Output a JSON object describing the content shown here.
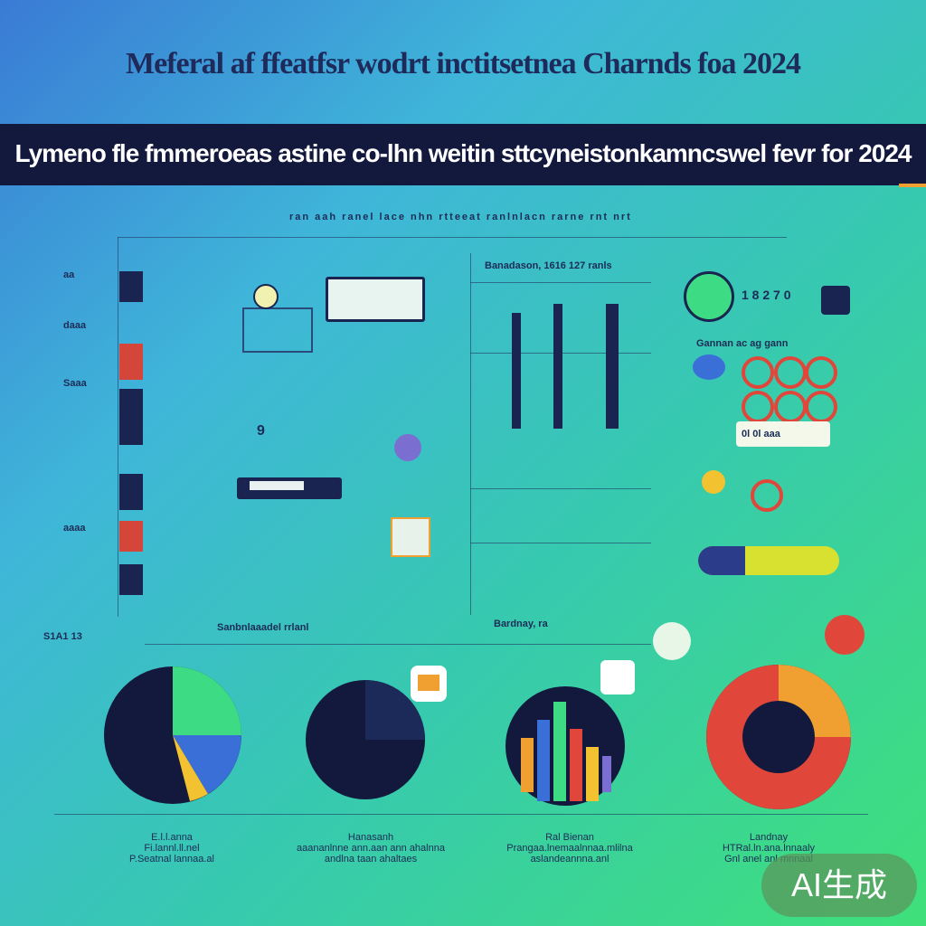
{
  "header": {
    "title": "Meferal af ffeatfsr wodrt inctitsetnea Charnds foa 2024",
    "subtitle": "Lymeno fle fmmeroeas astine co-lhn weitin sttcyneistonkamncswel fevr for 2024"
  },
  "labels": {
    "top_row": "ran  aah  ranel  lace  nhn  rtteeat  ranlnlacn  rarne  rnt  nrt",
    "chart_top": "Banadason, 1616 127 ranls",
    "right_value": "1 8 2 7 0",
    "right_stats": "Gannan ac ag gann",
    "right_row": "0l 0l  aaa",
    "number_9": "9",
    "left_axis_top": "S1A1 13",
    "mid_label": "Sanbnlaaadel  rrlanl",
    "mid_label_right": "Bardnay, ra",
    "far_left_1": "aa",
    "far_left_2": "daaa",
    "far_left_3": "Saaa",
    "far_left_4": "aaaa"
  },
  "captions": [
    {
      "line1": "E.l.l.anna",
      "line2": "Fi.lannl.ll.nel",
      "line3": "P.Seatnal lannaa.al"
    },
    {
      "line1": "Hanasanh",
      "line2": "aaananlnne ann.aan ann ahalnna",
      "line3": "andlna taan ahaltaes"
    },
    {
      "line1": "Ral Bienan",
      "line2": "Prangaa.lnemaalnnaa.mlilna",
      "line3": "aslandeannna.anl"
    },
    {
      "line1": "Landnay",
      "line2": "HTRal.ln.ana.lnnaaly",
      "line3": "Gnl anel anl mnnaal"
    }
  ],
  "badge": {
    "text": "AI生成"
  },
  "colors": {
    "navy": "#13193d",
    "green": "#3ddc84",
    "orange": "#f0a030",
    "red": "#e0473a",
    "blue": "#3a6fd8",
    "yellow": "#f2c230"
  }
}
